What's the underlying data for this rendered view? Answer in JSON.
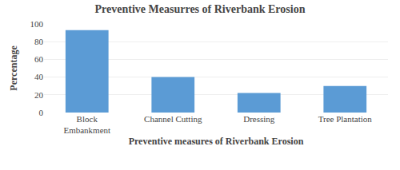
{
  "chart_data": {
    "type": "bar",
    "title": "Preventive Measurres of Riverbank Erosion",
    "xlabel": "Preventive measures of Riverbank Erosion",
    "ylabel": "Percentage",
    "categories": [
      "Block\nEmbankment",
      "Channel Cutting",
      "Dressing",
      "Tree Plantation"
    ],
    "values": [
      93,
      40,
      22,
      30
    ],
    "color": "#5b9bd5",
    "ylim": [
      0,
      100
    ],
    "yticks": [
      0,
      20,
      40,
      60,
      80,
      100
    ],
    "grid": true
  }
}
